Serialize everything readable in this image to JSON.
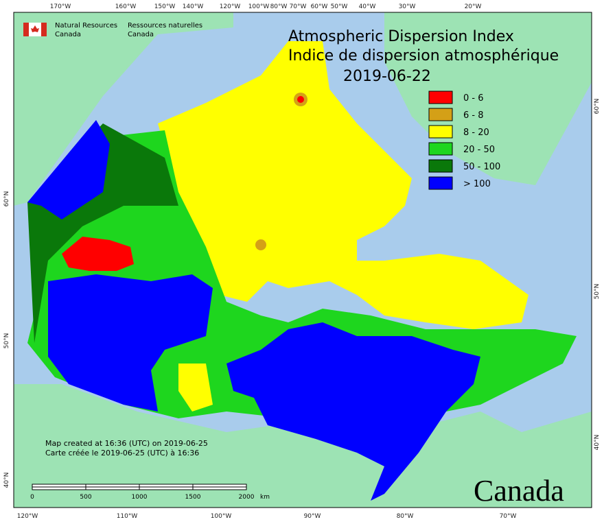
{
  "header": {
    "agency_en": "Natural Resources",
    "agency_en_2": "Canada",
    "agency_fr": "Ressources naturelles",
    "agency_fr_2": "Canada",
    "title_en": "Atmospheric Dispersion Index",
    "title_fr": "Indice de dispersion atmosphérique",
    "date": "2019-06-22"
  },
  "legend": [
    {
      "label": "0 - 6",
      "color": "#ff0000"
    },
    {
      "label": "6 - 8",
      "color": "#d4a017"
    },
    {
      "label": "8 - 20",
      "color": "#ffff00"
    },
    {
      "label": "20 - 50",
      "color": "#1ed61e"
    },
    {
      "label": "50 - 100",
      "color": "#0a780a"
    },
    {
      "label": "> 100",
      "color": "#0000ff"
    }
  ],
  "graticule": {
    "top": [
      "170°W",
      "160°W",
      "150°W",
      "140°W",
      "120°W",
      "100°W",
      "80°W",
      "70°W",
      "60°W",
      "50°W",
      "40°W",
      "30°W",
      "20°W"
    ],
    "bottom": [
      "120°W",
      "110°W",
      "100°W",
      "90°W",
      "80°W",
      "70°W"
    ],
    "left": [
      "60°N",
      "50°N",
      "40°N"
    ],
    "right": [
      "60°N",
      "50°N",
      "40°N"
    ]
  },
  "notes": {
    "created_en": "Map created at 16:36 (UTC) on 2019-06-25",
    "created_fr": "Carte créée le 2019-06-25 (UTC) à 16:36"
  },
  "scale": {
    "ticks": [
      "0",
      "500",
      "1000",
      "1500",
      "2000"
    ],
    "unit": "km"
  },
  "wordmark": "Canada"
}
